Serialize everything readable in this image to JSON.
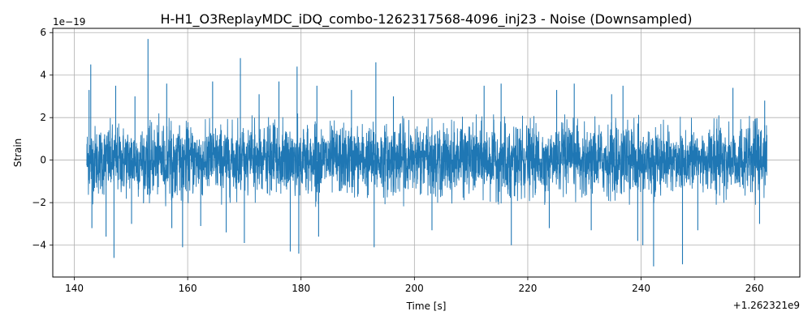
{
  "chart_data": {
    "type": "line",
    "title": "H-H1_O3ReplayMDC_iDQ_combo-1262317568-4096_inj23 - Noise (Downsampled)",
    "xlabel": "Time [s]",
    "ylabel": "Strain",
    "x_offset_label": "+1.262321e9",
    "y_scale_label": "1e−19",
    "xlim": [
      136.2,
      268.0
    ],
    "ylim": [
      -5.5,
      6.2
    ],
    "x_ticks": [
      140,
      160,
      180,
      200,
      220,
      240,
      260
    ],
    "x_tick_labels": [
      "140",
      "160",
      "180",
      "200",
      "220",
      "240",
      "260"
    ],
    "y_ticks": [
      -4,
      -2,
      0,
      2,
      4,
      6
    ],
    "y_tick_labels": [
      "−4",
      "−2",
      "0",
      "2",
      "4",
      "6"
    ],
    "grid": true,
    "series": [
      {
        "color": "#1f77b4",
        "x_start": 142.2,
        "x_end": 262.2,
        "envelope_abs_max": 2.2,
        "spikes": [
          {
            "x": 142.6,
            "y": 3.3
          },
          {
            "x": 142.9,
            "y": 4.5
          },
          {
            "x": 143.1,
            "y": -3.2
          },
          {
            "x": 145.6,
            "y": -3.6
          },
          {
            "x": 147.0,
            "y": -4.6
          },
          {
            "x": 147.3,
            "y": 3.5
          },
          {
            "x": 150.1,
            "y": -3.0
          },
          {
            "x": 150.7,
            "y": 3.0
          },
          {
            "x": 153.0,
            "y": 5.7
          },
          {
            "x": 156.3,
            "y": 3.6
          },
          {
            "x": 157.2,
            "y": -3.2
          },
          {
            "x": 159.1,
            "y": -4.1
          },
          {
            "x": 162.3,
            "y": -3.1
          },
          {
            "x": 164.4,
            "y": 3.7
          },
          {
            "x": 166.8,
            "y": -3.4
          },
          {
            "x": 169.3,
            "y": 4.8
          },
          {
            "x": 170.0,
            "y": -3.9
          },
          {
            "x": 172.6,
            "y": 3.1
          },
          {
            "x": 176.1,
            "y": 3.7
          },
          {
            "x": 178.1,
            "y": -4.3
          },
          {
            "x": 179.3,
            "y": 4.4
          },
          {
            "x": 179.6,
            "y": -4.4
          },
          {
            "x": 182.8,
            "y": 3.5
          },
          {
            "x": 183.1,
            "y": -3.6
          },
          {
            "x": 188.9,
            "y": 3.3
          },
          {
            "x": 192.9,
            "y": -4.1
          },
          {
            "x": 193.2,
            "y": 4.6
          },
          {
            "x": 196.3,
            "y": 3.0
          },
          {
            "x": 203.1,
            "y": -3.3
          },
          {
            "x": 212.3,
            "y": 3.5
          },
          {
            "x": 215.3,
            "y": 3.6
          },
          {
            "x": 217.1,
            "y": -4.0
          },
          {
            "x": 223.8,
            "y": -3.2
          },
          {
            "x": 225.1,
            "y": 3.3
          },
          {
            "x": 228.2,
            "y": 3.6
          },
          {
            "x": 231.2,
            "y": -3.3
          },
          {
            "x": 234.8,
            "y": 3.1
          },
          {
            "x": 236.8,
            "y": 3.5
          },
          {
            "x": 239.4,
            "y": -3.8
          },
          {
            "x": 240.3,
            "y": -4.0
          },
          {
            "x": 242.2,
            "y": -5.0
          },
          {
            "x": 247.3,
            "y": -4.9
          },
          {
            "x": 250.0,
            "y": -3.3
          },
          {
            "x": 256.2,
            "y": 3.4
          },
          {
            "x": 260.9,
            "y": -3.0
          },
          {
            "x": 261.8,
            "y": 2.8
          }
        ]
      }
    ]
  }
}
